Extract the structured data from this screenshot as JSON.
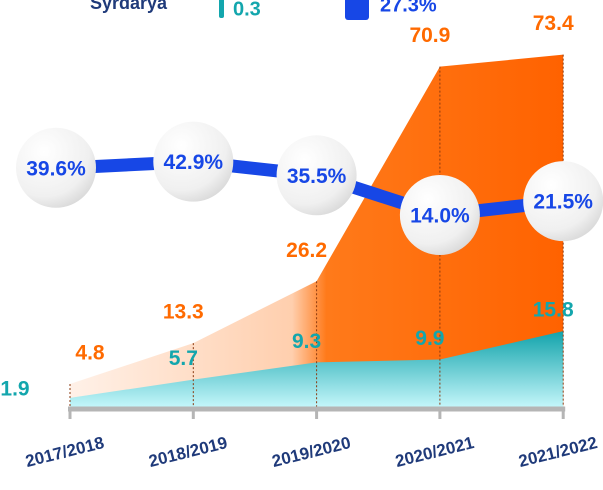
{
  "chart_data": {
    "type": "area",
    "annotations": [
      "Syrdarya",
      "0.3",
      "27.3%"
    ],
    "categories": [
      "2017/2018",
      "2018/2019",
      "2019/2020",
      "2020/2021",
      "2021/2022"
    ],
    "ylim": [
      0,
      75
    ],
    "y2lim": [
      -90,
      105
    ],
    "series": [
      {
        "color": "#ff6a00",
        "values": [
          4.8,
          13.3,
          26.2,
          70.9,
          73.4
        ]
      },
      {
        "color": "#13a6ad",
        "values": [
          1.9,
          5.7,
          9.3,
          9.9,
          15.8
        ]
      },
      {
        "type": "line",
        "axis": "y2",
        "color": "#1747e6",
        "values": [
          39.6,
          42.9,
          35.5,
          14.0,
          21.5
        ],
        "value_labels": [
          "39.6%",
          "42.9%",
          "35.5%",
          "14.0%",
          "21.5%"
        ]
      }
    ]
  }
}
